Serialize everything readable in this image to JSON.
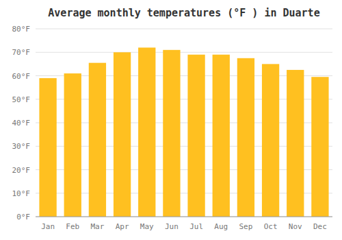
{
  "chart_data": {
    "type": "bar",
    "title": "Average monthly temperatures (°F ) in Duarte",
    "categories": [
      "Jan",
      "Feb",
      "Mar",
      "Apr",
      "May",
      "Jun",
      "Jul",
      "Aug",
      "Sep",
      "Oct",
      "Nov",
      "Dec"
    ],
    "values": [
      59,
      61,
      65.5,
      70,
      72,
      71,
      69,
      69,
      67.5,
      65,
      62.5,
      59.5
    ],
    "color": "#FFC020",
    "ylim": [
      0,
      80
    ],
    "yticks": [
      {
        "value": 0,
        "label": "0°F"
      },
      {
        "value": 10,
        "label": "10°F"
      },
      {
        "value": 20,
        "label": "20°F"
      },
      {
        "value": 30,
        "label": "30°F"
      },
      {
        "value": 40,
        "label": "40°F"
      },
      {
        "value": 50,
        "label": "50°F"
      },
      {
        "value": 60,
        "label": "60°F"
      },
      {
        "value": 70,
        "label": "70°F"
      },
      {
        "value": 80,
        "label": "80°F"
      }
    ],
    "grid": true
  }
}
